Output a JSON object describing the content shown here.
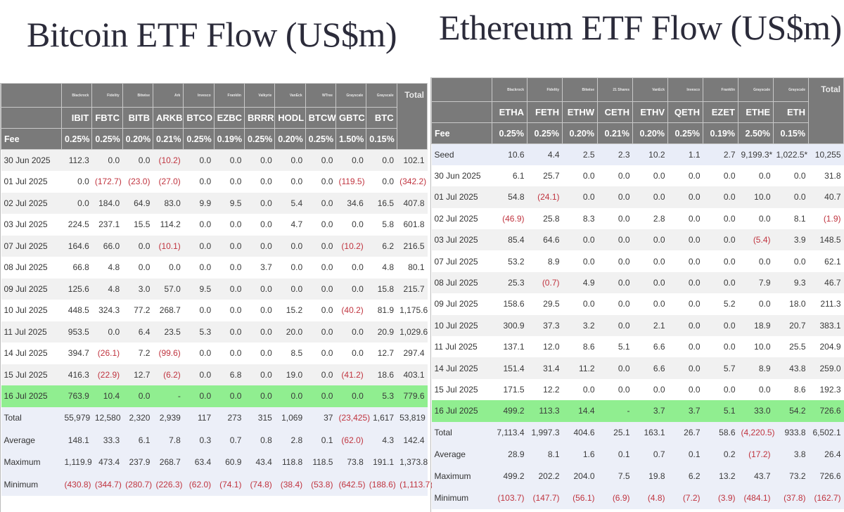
{
  "bitcoin": {
    "title": "Bitcoin ETF Flow (US$m)",
    "label_header": "",
    "fee_label": "Fee",
    "total_label": "Total",
    "funds": [
      {
        "issuer": "Blackrock",
        "ticker": "IBIT",
        "fee": "0.25%"
      },
      {
        "issuer": "Fidelity",
        "ticker": "FBTC",
        "fee": "0.25%"
      },
      {
        "issuer": "Bitwise",
        "ticker": "BITB",
        "fee": "0.20%"
      },
      {
        "issuer": "Ark",
        "ticker": "ARKB",
        "fee": "0.21%"
      },
      {
        "issuer": "Invesco",
        "ticker": "BTCO",
        "fee": "0.25%"
      },
      {
        "issuer": "Franklin",
        "ticker": "EZBC",
        "fee": "0.19%"
      },
      {
        "issuer": "Valkyrie",
        "ticker": "BRRR",
        "fee": "0.25%"
      },
      {
        "issuer": "VanEck",
        "ticker": "HODL",
        "fee": "0.20%"
      },
      {
        "issuer": "WTree",
        "ticker": "BTCW",
        "fee": "0.25%"
      },
      {
        "issuer": "Grayscale",
        "ticker": "GBTC",
        "fee": "1.50%"
      },
      {
        "issuer": "Grayscale",
        "ticker": "BTC",
        "fee": "0.15%"
      }
    ],
    "rows": [
      {
        "label": "30 Jun 2025",
        "type": "alt",
        "values": [
          "112.3",
          "0.0",
          "0.0",
          "(10.2)",
          "0.0",
          "0.0",
          "0.0",
          "0.0",
          "0.0",
          "0.0",
          "0.0",
          "102.1"
        ]
      },
      {
        "label": "01 Jul 2025",
        "type": "plain",
        "values": [
          "0.0",
          "(172.7)",
          "(23.0)",
          "(27.0)",
          "0.0",
          "0.0",
          "0.0",
          "0.0",
          "0.0",
          "(119.5)",
          "0.0",
          "(342.2)"
        ]
      },
      {
        "label": "02 Jul 2025",
        "type": "alt",
        "values": [
          "0.0",
          "184.0",
          "64.9",
          "83.0",
          "9.9",
          "9.5",
          "0.0",
          "5.4",
          "0.0",
          "34.6",
          "16.5",
          "407.8"
        ]
      },
      {
        "label": "03 Jul 2025",
        "type": "plain",
        "values": [
          "224.5",
          "237.1",
          "15.5",
          "114.2",
          "0.0",
          "0.0",
          "0.0",
          "4.7",
          "0.0",
          "0.0",
          "5.8",
          "601.8"
        ]
      },
      {
        "label": "07 Jul 2025",
        "type": "alt",
        "values": [
          "164.6",
          "66.0",
          "0.0",
          "(10.1)",
          "0.0",
          "0.0",
          "0.0",
          "0.0",
          "0.0",
          "(10.2)",
          "6.2",
          "216.5"
        ]
      },
      {
        "label": "08 Jul 2025",
        "type": "plain",
        "values": [
          "66.8",
          "4.8",
          "0.0",
          "0.0",
          "0.0",
          "0.0",
          "3.7",
          "0.0",
          "0.0",
          "0.0",
          "4.8",
          "80.1"
        ]
      },
      {
        "label": "09 Jul 2025",
        "type": "alt",
        "values": [
          "125.6",
          "4.8",
          "3.0",
          "57.0",
          "9.5",
          "0.0",
          "0.0",
          "0.0",
          "0.0",
          "0.0",
          "15.8",
          "215.7"
        ]
      },
      {
        "label": "10 Jul 2025",
        "type": "plain",
        "values": [
          "448.5",
          "324.3",
          "77.2",
          "268.7",
          "0.0",
          "0.0",
          "0.0",
          "15.2",
          "0.0",
          "(40.2)",
          "81.9",
          "1,175.6"
        ]
      },
      {
        "label": "11 Jul 2025",
        "type": "alt",
        "values": [
          "953.5",
          "0.0",
          "6.4",
          "23.5",
          "5.3",
          "0.0",
          "0.0",
          "20.0",
          "0.0",
          "0.0",
          "20.9",
          "1,029.6"
        ]
      },
      {
        "label": "14 Jul 2025",
        "type": "plain",
        "values": [
          "394.7",
          "(26.1)",
          "7.2",
          "(99.6)",
          "0.0",
          "0.0",
          "0.0",
          "8.5",
          "0.0",
          "0.0",
          "12.7",
          "297.4"
        ]
      },
      {
        "label": "15 Jul 2025",
        "type": "alt",
        "values": [
          "416.3",
          "(22.9)",
          "12.7",
          "(6.2)",
          "0.0",
          "6.8",
          "0.0",
          "19.0",
          "0.0",
          "(41.2)",
          "18.6",
          "403.1"
        ]
      },
      {
        "label": "16 Jul 2025",
        "type": "latest",
        "values": [
          "763.9",
          "10.4",
          "0.0",
          "-",
          "0.0",
          "0.0",
          "0.0",
          "0.0",
          "0.0",
          "0.0",
          "5.3",
          "779.6"
        ]
      },
      {
        "label": "Total",
        "type": "stat",
        "values": [
          "55,979",
          "12,580",
          "2,320",
          "2,939",
          "117",
          "273",
          "315",
          "1,069",
          "37",
          "(23,425)",
          "1,617",
          "53,819"
        ]
      },
      {
        "label": "Average",
        "type": "stat",
        "values": [
          "148.1",
          "33.3",
          "6.1",
          "7.8",
          "0.3",
          "0.7",
          "0.8",
          "2.8",
          "0.1",
          "(62.0)",
          "4.3",
          "142.4"
        ]
      },
      {
        "label": "Maximum",
        "type": "stat",
        "values": [
          "1,119.9",
          "473.4",
          "237.9",
          "268.7",
          "63.4",
          "60.9",
          "43.4",
          "118.8",
          "118.5",
          "73.8",
          "191.1",
          "1,373.8"
        ]
      },
      {
        "label": "Minimum",
        "type": "stat",
        "values": [
          "(430.8)",
          "(344.7)",
          "(280.7)",
          "(226.3)",
          "(62.0)",
          "(74.1)",
          "(74.8)",
          "(38.4)",
          "(53.8)",
          "(642.5)",
          "(188.6)",
          "(1,113.7)"
        ]
      }
    ]
  },
  "ethereum": {
    "title": "Ethereum ETF Flow (US$m)",
    "label_header": "",
    "fee_label": "Fee",
    "total_label": "Total",
    "funds": [
      {
        "issuer": "Blackrock",
        "ticker": "ETHA",
        "fee": "0.25%"
      },
      {
        "issuer": "Fidelity",
        "ticker": "FETH",
        "fee": "0.25%"
      },
      {
        "issuer": "Bitwise",
        "ticker": "ETHW",
        "fee": "0.20%"
      },
      {
        "issuer": "21 Shares",
        "ticker": "CETH",
        "fee": "0.21%"
      },
      {
        "issuer": "VanEck",
        "ticker": "ETHV",
        "fee": "0.20%"
      },
      {
        "issuer": "Invesco",
        "ticker": "QETH",
        "fee": "0.25%"
      },
      {
        "issuer": "Franklin",
        "ticker": "EZET",
        "fee": "0.19%"
      },
      {
        "issuer": "Grayscale",
        "ticker": "ETHE",
        "fee": "2.50%"
      },
      {
        "issuer": "Grayscale",
        "ticker": "ETH",
        "fee": "0.15%"
      }
    ],
    "rows": [
      {
        "label": "Seed",
        "type": "seed",
        "values": [
          "10.6",
          "4.4",
          "2.5",
          "2.3",
          "10.2",
          "1.1",
          "2.7",
          "9,199.3*",
          "1,022.5*",
          "10,255"
        ]
      },
      {
        "label": "30 Jun 2025",
        "type": "plain",
        "values": [
          "6.1",
          "25.7",
          "0.0",
          "0.0",
          "0.0",
          "0.0",
          "0.0",
          "0.0",
          "0.0",
          "31.8"
        ]
      },
      {
        "label": "01 Jul 2025",
        "type": "alt",
        "values": [
          "54.8",
          "(24.1)",
          "0.0",
          "0.0",
          "0.0",
          "0.0",
          "0.0",
          "10.0",
          "0.0",
          "40.7"
        ]
      },
      {
        "label": "02 Jul 2025",
        "type": "plain",
        "values": [
          "(46.9)",
          "25.8",
          "8.3",
          "0.0",
          "2.8",
          "0.0",
          "0.0",
          "0.0",
          "8.1",
          "(1.9)"
        ]
      },
      {
        "label": "03 Jul 2025",
        "type": "alt",
        "values": [
          "85.4",
          "64.6",
          "0.0",
          "0.0",
          "0.0",
          "0.0",
          "0.0",
          "(5.4)",
          "3.9",
          "148.5"
        ]
      },
      {
        "label": "07 Jul 2025",
        "type": "plain",
        "values": [
          "53.2",
          "8.9",
          "0.0",
          "0.0",
          "0.0",
          "0.0",
          "0.0",
          "0.0",
          "0.0",
          "62.1"
        ]
      },
      {
        "label": "08 Jul 2025",
        "type": "alt",
        "values": [
          "25.3",
          "(0.7)",
          "4.9",
          "0.0",
          "0.0",
          "0.0",
          "0.0",
          "7.9",
          "9.3",
          "46.7"
        ]
      },
      {
        "label": "09 Jul 2025",
        "type": "plain",
        "values": [
          "158.6",
          "29.5",
          "0.0",
          "0.0",
          "0.0",
          "0.0",
          "5.2",
          "0.0",
          "18.0",
          "211.3"
        ]
      },
      {
        "label": "10 Jul 2025",
        "type": "alt",
        "values": [
          "300.9",
          "37.3",
          "3.2",
          "0.0",
          "2.1",
          "0.0",
          "0.0",
          "18.9",
          "20.7",
          "383.1"
        ]
      },
      {
        "label": "11 Jul 2025",
        "type": "plain",
        "values": [
          "137.1",
          "12.0",
          "8.6",
          "5.1",
          "6.6",
          "0.0",
          "0.0",
          "10.0",
          "25.5",
          "204.9"
        ]
      },
      {
        "label": "14 Jul 2025",
        "type": "alt",
        "values": [
          "151.4",
          "31.4",
          "11.2",
          "0.0",
          "6.6",
          "0.0",
          "5.7",
          "8.9",
          "43.8",
          "259.0"
        ]
      },
      {
        "label": "15 Jul 2025",
        "type": "plain",
        "values": [
          "171.5",
          "12.2",
          "0.0",
          "0.0",
          "0.0",
          "0.0",
          "0.0",
          "0.0",
          "8.6",
          "192.3"
        ]
      },
      {
        "label": "16 Jul 2025",
        "type": "latest",
        "values": [
          "499.2",
          "113.3",
          "14.4",
          "-",
          "3.7",
          "3.7",
          "5.1",
          "33.0",
          "54.2",
          "726.6"
        ]
      },
      {
        "label": "Total",
        "type": "stat",
        "values": [
          "7,113.4",
          "1,997.3",
          "404.6",
          "25.1",
          "163.1",
          "26.7",
          "58.6",
          "(4,220.5)",
          "933.8",
          "6,502.1"
        ]
      },
      {
        "label": "Average",
        "type": "stat",
        "values": [
          "28.9",
          "8.1",
          "1.6",
          "0.1",
          "0.7",
          "0.1",
          "0.2",
          "(17.2)",
          "3.8",
          "26.4"
        ]
      },
      {
        "label": "Maximum",
        "type": "stat",
        "values": [
          "499.2",
          "202.2",
          "204.0",
          "7.5",
          "19.8",
          "6.2",
          "13.2",
          "43.7",
          "73.2",
          "726.6"
        ]
      },
      {
        "label": "Minimum",
        "type": "stat",
        "values": [
          "(103.7)",
          "(147.7)",
          "(56.1)",
          "(6.9)",
          "(4.8)",
          "(7.2)",
          "(3.9)",
          "(484.1)",
          "(37.8)",
          "(162.7)"
        ]
      }
    ]
  },
  "colors": {
    "header_bg": "#7a7a7a",
    "latest_row_bg": "#90ee90",
    "stat_row_bg": "#eceff8",
    "negative_text": "#c0343f",
    "title_text": "#2b2b3a"
  }
}
